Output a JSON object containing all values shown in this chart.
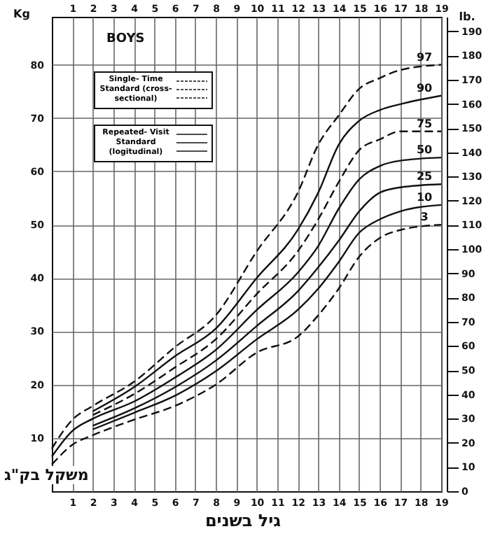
{
  "chart_data": {
    "type": "line",
    "title": "BOYS",
    "ylabel": "Kg",
    "y2label": "lb.",
    "xlabel": "גיל בשנים",
    "annotations": [
      "משקל בק\"ג",
      "Single- Time Standard (cross-sectional)",
      "Repeated- Visit Standard (logitudinal)"
    ],
    "xlim": [
      0,
      19
    ],
    "xticks": [
      1,
      2,
      3,
      4,
      5,
      6,
      7,
      8,
      9,
      10,
      11,
      12,
      13,
      14,
      15,
      16,
      17,
      18,
      19
    ],
    "x2lim": [
      0,
      19
    ],
    "x2ticks": [
      1,
      2,
      3,
      4,
      5,
      6,
      7,
      8,
      9,
      10,
      11,
      12,
      13,
      14,
      15,
      16,
      17,
      18,
      19
    ],
    "ylim": [
      0,
      89
    ],
    "yticks": [
      10,
      20,
      30,
      40,
      50,
      60,
      70,
      80
    ],
    "y2lim": [
      0,
      196
    ],
    "y2ticks": [
      0,
      10,
      20,
      30,
      40,
      50,
      60,
      70,
      80,
      90,
      100,
      110,
      120,
      130,
      140,
      150,
      160,
      170,
      180,
      190
    ],
    "grid": true,
    "series": [
      {
        "name": "97",
        "color": "#111111",
        "line_style": "dashed",
        "x": [
          0,
          1,
          2,
          4,
          6,
          8,
          10,
          12,
          13,
          14,
          15,
          16,
          17,
          19
        ],
        "values": [
          8,
          13.4,
          16,
          20.5,
          27,
          33,
          45,
          56,
          65,
          70.5,
          75.5,
          77.5,
          79,
          80
        ]
      },
      {
        "name": "90",
        "color": "#111111",
        "line_style": "solid",
        "x": [
          2,
          4,
          6,
          8,
          10,
          12,
          13,
          14,
          15,
          16,
          17,
          19
        ],
        "values": [
          15,
          19.5,
          25.3,
          30.5,
          40,
          49,
          56,
          65,
          69.5,
          71.5,
          72.6,
          74.2
        ]
      },
      {
        "name": "75",
        "color": "#111111",
        "line_style": "dashed",
        "x": [
          2,
          4,
          6,
          8,
          10,
          12,
          13,
          14,
          15,
          16,
          17,
          19
        ],
        "values": [
          14.3,
          18.2,
          23.2,
          28.5,
          37,
          45,
          51,
          58,
          64,
          66,
          67.5,
          67.5
        ]
      },
      {
        "name": "50",
        "color": "#111111",
        "line_style": "solid",
        "x": [
          0,
          1,
          2,
          4,
          6,
          8,
          10,
          12,
          13,
          14,
          15,
          16,
          17,
          19
        ],
        "values": [
          6.5,
          11.3,
          13.6,
          16.8,
          21.3,
          26.5,
          34,
          41,
          46,
          53,
          58.5,
          61,
          62,
          62.6
        ]
      },
      {
        "name": "25",
        "color": "#111111",
        "line_style": "solid",
        "x": [
          2,
          4,
          6,
          8,
          10,
          12,
          13,
          14,
          15,
          16,
          17,
          19
        ],
        "values": [
          12.3,
          15.5,
          19.5,
          24.5,
          31,
          37.5,
          42,
          47,
          52.5,
          56,
          57,
          57.6
        ]
      },
      {
        "name": "10",
        "color": "#111111",
        "line_style": "solid",
        "x": [
          2,
          4,
          6,
          8,
          10,
          12,
          13,
          14,
          15,
          16,
          17,
          19
        ],
        "values": [
          11.6,
          14.7,
          17.9,
          22.5,
          28.5,
          34,
          38,
          43,
          48.5,
          51,
          52.5,
          53.7
        ]
      },
      {
        "name": "3",
        "color": "#111111",
        "line_style": "dashed",
        "x": [
          0,
          1,
          2,
          4,
          6,
          8,
          10,
          12,
          13,
          14,
          15,
          16,
          17,
          19
        ],
        "values": [
          5,
          8.7,
          10.5,
          13.4,
          16,
          20,
          26,
          29,
          33,
          38,
          44,
          47.5,
          49,
          50
        ]
      }
    ]
  }
}
